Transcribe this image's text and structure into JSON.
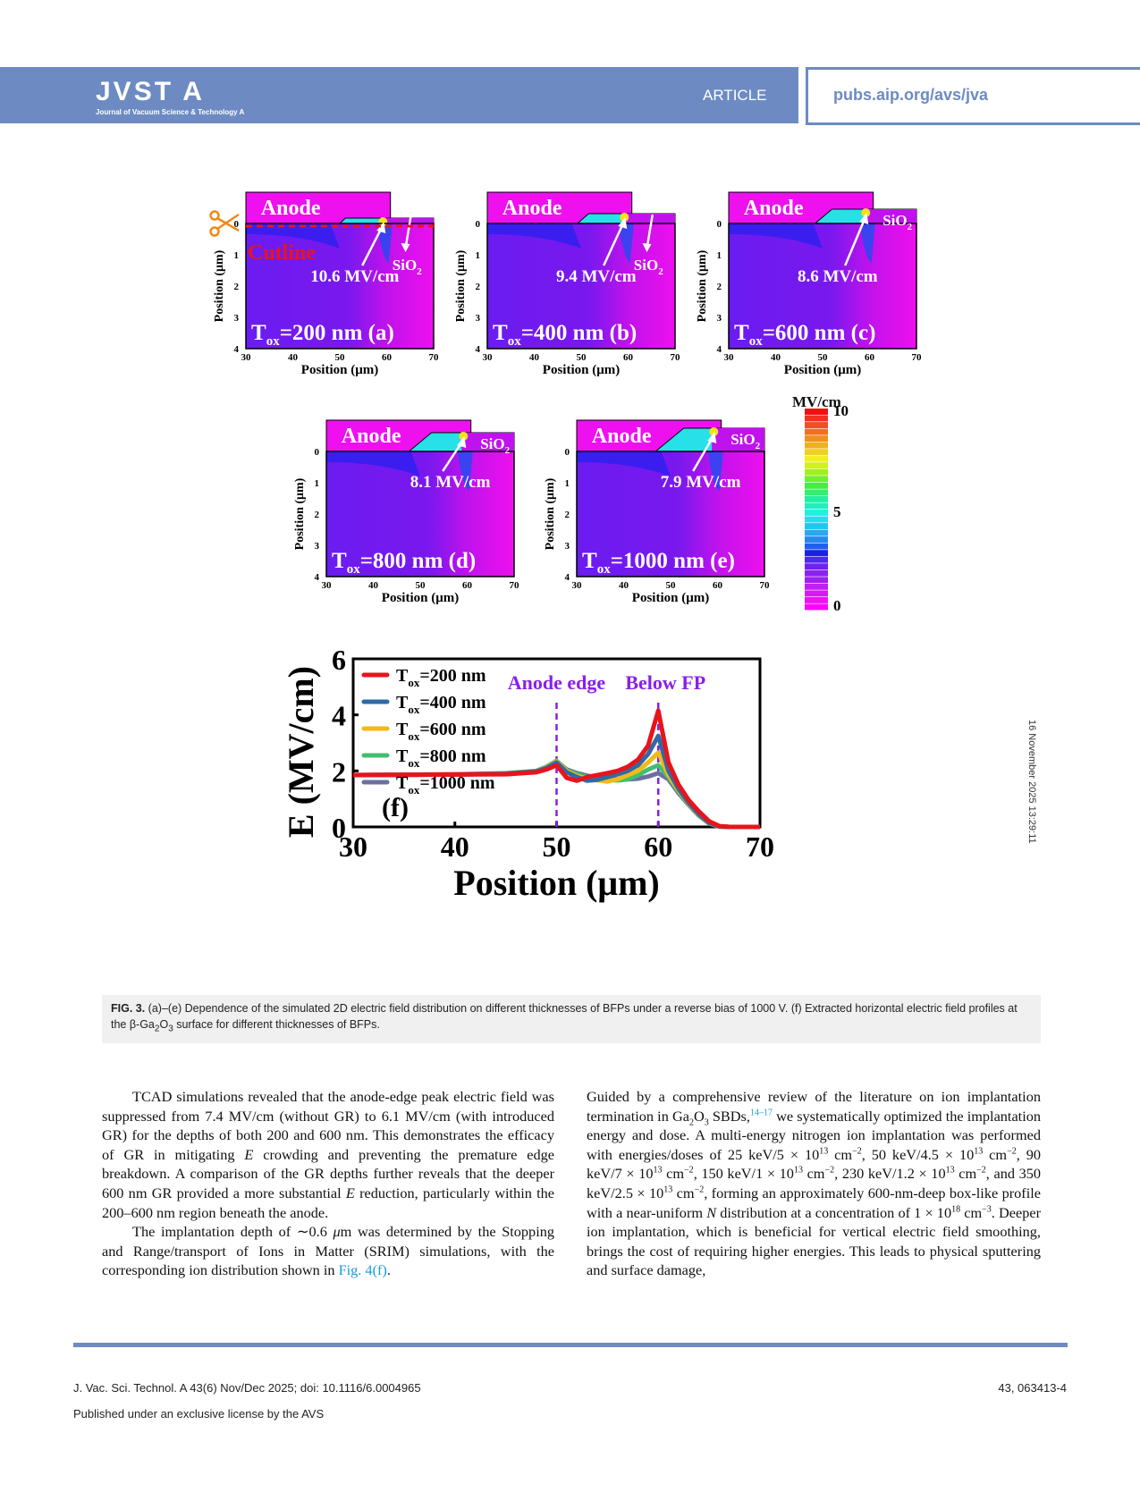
{
  "header": {
    "journal_logo": "JVST A",
    "journal_subtitle": "Journal of Vacuum Science & Technology A",
    "section": "ARTICLE",
    "url": "pubs.aip.org/avs/jva",
    "brand_color": "#6d8bc2"
  },
  "side_stamp": "16 November 2025 13:29:11",
  "figure": {
    "maps": [
      {
        "id": "a",
        "tox": "=200 nm",
        "label": "(a)",
        "peak": "10.6 MV/cm",
        "show_cutline": true,
        "cutline_label": "Cutline",
        "sio2_label": "SiO",
        "sio2_sub": "2"
      },
      {
        "id": "b",
        "tox": "=400 nm",
        "label": "(b)",
        "peak": "9.4 MV/cm",
        "sio2_label": "SiO",
        "sio2_sub": "2"
      },
      {
        "id": "c",
        "tox": "=600 nm",
        "label": "(c)",
        "peak": "8.6 MV/cm",
        "sio2_label": "SiO",
        "sio2_sub": "2"
      },
      {
        "id": "d",
        "tox": "=800 nm",
        "label": "(d)",
        "peak": "8.1 MV/cm",
        "sio2_label": "SiO",
        "sio2_sub": "2"
      },
      {
        "id": "e",
        "tox": "=1000 nm",
        "label": "(e)",
        "peak": "7.9 MV/cm",
        "sio2_label": "SiO",
        "sio2_sub": "2"
      }
    ],
    "map_common": {
      "anode_label": "Anode",
      "tox_T": "T",
      "tox_sub": "ox",
      "ylabel": "Position (μm)",
      "xlabel": "Position (μm)",
      "xticks": [
        "30",
        "40",
        "50",
        "60",
        "70"
      ],
      "yticks": [
        "0",
        "1",
        "2",
        "3",
        "4"
      ]
    },
    "colorbar": {
      "unit": "MV/cm",
      "ticks": [
        "10",
        "5",
        "0"
      ],
      "range": [
        0,
        10
      ]
    }
  },
  "chart_data": {
    "type": "line",
    "panel_label": "(f)",
    "xlabel": "Position (μm)",
    "ylabel": "E (MV/cm)",
    "xlim": [
      30,
      70
    ],
    "ylim": [
      0,
      6
    ],
    "xticks": [
      30,
      40,
      50,
      60,
      70
    ],
    "yticks": [
      0,
      2,
      4,
      6
    ],
    "legend_position": "top-left",
    "annotations": [
      {
        "text": "Anode edge",
        "x": 50,
        "color": "#8a1fe8"
      },
      {
        "text": "Below FP",
        "x": 60,
        "color": "#8a1fe8"
      }
    ],
    "x": [
      30,
      40,
      45,
      48,
      49,
      50,
      51,
      52,
      53,
      54,
      55,
      56,
      57,
      58,
      59,
      60,
      61,
      62,
      63,
      64,
      65,
      66,
      67,
      70
    ],
    "series": [
      {
        "name": "T_ox=200 nm",
        "legend_T": "T",
        "legend_sub": "ox",
        "legend_rest": "=200 nm",
        "color": "#e8141c",
        "values": [
          1.85,
          1.87,
          1.88,
          1.95,
          2.05,
          2.2,
          1.75,
          1.65,
          1.78,
          1.85,
          1.92,
          2.0,
          2.15,
          2.4,
          2.9,
          4.15,
          2.3,
          1.5,
          0.95,
          0.55,
          0.2,
          0.03,
          0.0,
          0.0
        ]
      },
      {
        "name": "T_ox=400 nm",
        "legend_T": "T",
        "legend_sub": "ox",
        "legend_rest": "=400 nm",
        "color": "#2f6aa5",
        "values": [
          1.85,
          1.87,
          1.9,
          1.98,
          2.1,
          2.3,
          1.95,
          1.78,
          1.65,
          1.68,
          1.78,
          1.88,
          2.0,
          2.2,
          2.6,
          3.25,
          2.0,
          1.35,
          0.85,
          0.45,
          0.15,
          0.02,
          0.0,
          0.0
        ]
      },
      {
        "name": "T_ox=600 nm",
        "legend_T": "T",
        "legend_sub": "ox",
        "legend_rest": "=600 nm",
        "color": "#f5b915",
        "values": [
          1.85,
          1.87,
          1.9,
          1.98,
          2.12,
          2.33,
          2.0,
          1.82,
          1.72,
          1.67,
          1.62,
          1.7,
          1.85,
          2.0,
          2.3,
          2.65,
          1.85,
          1.3,
          0.82,
          0.43,
          0.14,
          0.02,
          0.0,
          0.0
        ]
      },
      {
        "name": "T_ox=800 nm",
        "legend_T": "T",
        "legend_sub": "ox",
        "legend_rest": "=800 nm",
        "color": "#3fbf70",
        "values": [
          1.85,
          1.88,
          1.92,
          2.0,
          2.15,
          2.36,
          2.02,
          1.88,
          1.78,
          1.72,
          1.68,
          1.66,
          1.7,
          1.85,
          2.05,
          2.2,
          1.78,
          1.25,
          0.8,
          0.42,
          0.13,
          0.01,
          0.0,
          0.0
        ]
      },
      {
        "name": "T_ox=1000 nm",
        "legend_T": "T",
        "legend_sub": "ox",
        "legend_rest": "=1000 nm",
        "color": "#6b6fa0",
        "values": [
          1.85,
          1.87,
          1.9,
          1.98,
          2.1,
          2.35,
          2.05,
          1.92,
          1.83,
          1.77,
          1.73,
          1.7,
          1.7,
          1.72,
          1.8,
          1.92,
          1.7,
          1.2,
          0.78,
          0.4,
          0.12,
          0.01,
          0.0,
          0.0
        ]
      }
    ]
  },
  "caption": {
    "label": "FIG. 3.",
    "text_1": " (a)–(e) Dependence of the simulated 2D electric field distribution on different thicknesses of BFPs under a reverse bias of 1000 V. (f) Extracted horizontal electric field profiles at the β-Ga",
    "sub_1": "2",
    "text_2": "O",
    "sub_2": "3",
    "text_3": " surface for different thicknesses of BFPs."
  },
  "body": {
    "left_p1": "TCAD simulations revealed that the anode-edge peak electric field was suppressed from 7.4 MV/cm (without GR) to 6.1 MV/cm (with introduced GR) for the depths of both 200 and 600 nm. This demonstrates the efficacy of GR in mitigating ",
    "left_p1_E": "E",
    "left_p1_b": " crowding and preventing the premature edge breakdown. A comparison of the GR depths further reveals that the deeper 600 nm GR provided a more substantial ",
    "left_p1_E2": "E",
    "left_p1_c": " reduction, particularly within the 200–600 nm region beneath the anode.",
    "left_p2": "The implantation depth of ∼0.6 ",
    "left_p2_mu": "μ",
    "left_p2_b": "m was determined by the Stopping and Range/transport of Ions in Matter (SRIM) simulations, with the corresponding ion distribution shown in ",
    "left_p2_link": "Fig. 4(f)",
    "left_p2_end": ".",
    "right_a": "Guided by a comprehensive review of the literature on ion implantation termination in Ga",
    "right_sub2": "2",
    "right_O": "O",
    "right_sub3": "3",
    "right_b": " SBDs,",
    "right_ref": "14–17",
    "right_c": " we systematically optimized the implantation energy and dose. A multi-energy nitrogen ion implantation was performed with energies/doses of 25 keV/5 × 10",
    "exp13": "13",
    "cm": " cm",
    "expm2": "−2",
    "right_d": ", 50 keV/4.5 × 10",
    "right_e": ", 90 keV/7 × 10",
    "right_f": ", 150 keV/1 × 10",
    "right_g": ", 230 keV/1.2 × 10",
    "right_h": ", and 350 keV/2.5 × 10",
    "right_i": ", forming an approximately 600-nm-deep box-like profile with a near-uniform ",
    "right_N": "N",
    "right_j": " distribution at a concentration of 1 × 10",
    "exp18": "18",
    "expm3": "−3",
    "right_k": ". Deeper ion implantation, which is beneficial for vertical electric field smoothing, brings the cost of requiring higher energies. This leads to physical sputtering and surface damage,"
  },
  "footer": {
    "citation": "J. Vac. Sci. Technol. A 43(6) Nov/Dec 2025; doi: 10.1116/6.0004965",
    "license": "Published under an exclusive license by the AVS",
    "page": "43, 063413-4"
  }
}
